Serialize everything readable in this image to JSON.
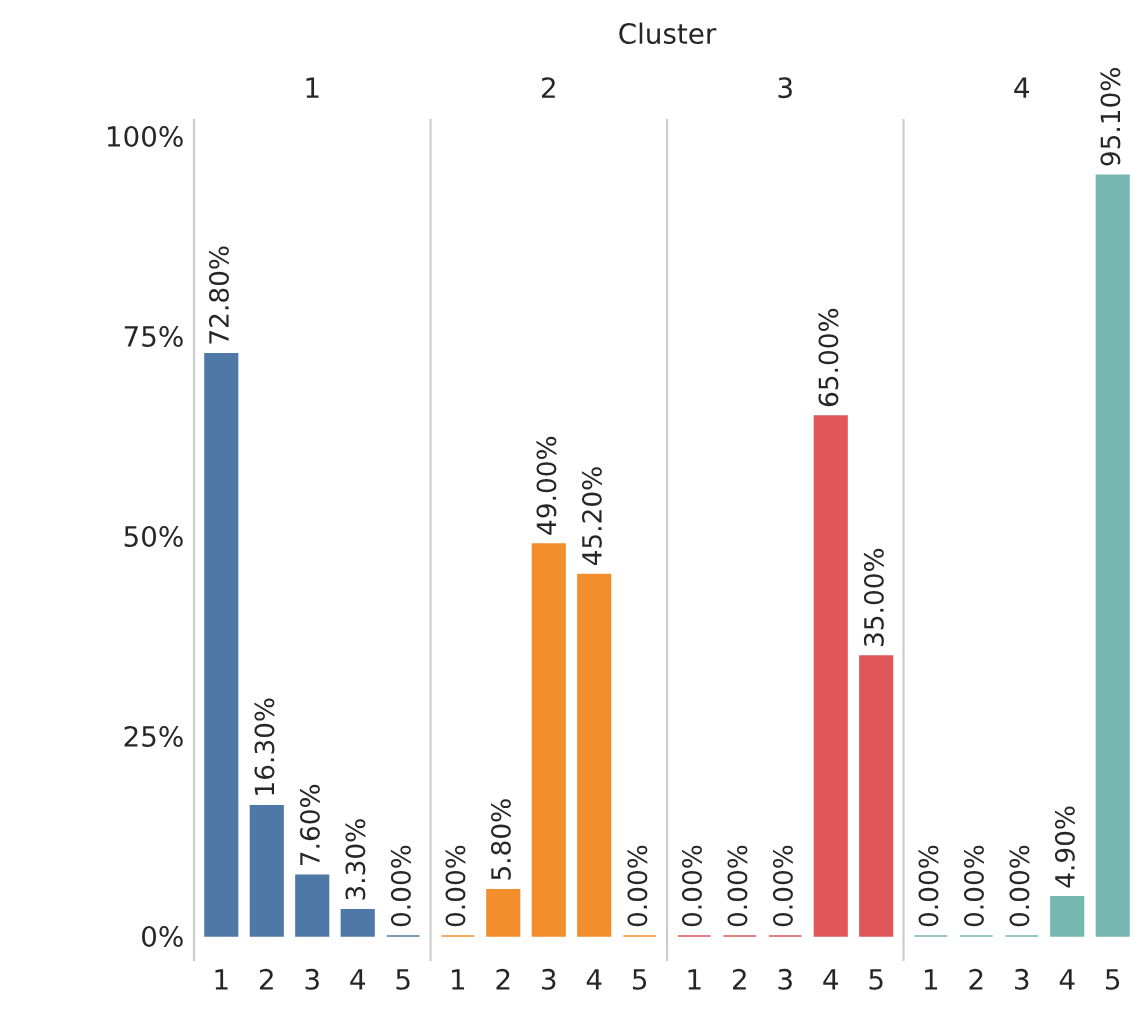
{
  "chart_data": [
    {
      "type": "bar",
      "title": "1",
      "annotations": [
        "Cluster"
      ],
      "categories": [
        "1",
        "2",
        "3",
        "4",
        "5"
      ],
      "values": [
        72.8,
        16.3,
        7.6,
        3.3,
        0.0
      ],
      "value_labels": [
        "72.80%",
        "16.30%",
        "7.60%",
        "3.30%",
        "0.00%"
      ],
      "color": "#4e79a7",
      "ylim": [
        -3,
        102
      ],
      "yticks": [
        {
          "value": 0,
          "label": "0%"
        },
        {
          "value": 25,
          "label": "25%"
        },
        {
          "value": 50,
          "label": "50%"
        },
        {
          "value": 75,
          "label": "75%"
        },
        {
          "value": 100,
          "label": "100%"
        }
      ]
    },
    {
      "type": "bar",
      "title": "2",
      "categories": [
        "1",
        "2",
        "3",
        "4",
        "5"
      ],
      "values": [
        0.0,
        5.8,
        49.0,
        45.2,
        0.0
      ],
      "value_labels": [
        "0.00%",
        "5.80%",
        "49.00%",
        "45.20%",
        "0.00%"
      ],
      "color": "#f28e2b",
      "ylim": [
        -3,
        102
      ],
      "tick_labels": "x"
    },
    {
      "type": "bar",
      "title": "3",
      "categories": [
        "1",
        "2",
        "3",
        "4",
        "5"
      ],
      "values": [
        0.0,
        0.0,
        0.0,
        65.0,
        35.0
      ],
      "value_labels": [
        "0.00%",
        "0.00%",
        "0.00%",
        "65.00%",
        "35.00%"
      ],
      "color": "#e15759",
      "ylim": [
        -3,
        102
      ],
      "tick_labels": "x"
    },
    {
      "type": "bar",
      "title": "4",
      "categories": [
        "1",
        "2",
        "3",
        "4",
        "5"
      ],
      "values": [
        0.0,
        0.0,
        0.0,
        4.9,
        95.1
      ],
      "value_labels": [
        "0.00%",
        "0.00%",
        "0.00%",
        "4.90%",
        "95.10%"
      ],
      "color": "#76b7b2",
      "ylim": [
        -3,
        102
      ],
      "tick_labels": "x"
    }
  ]
}
